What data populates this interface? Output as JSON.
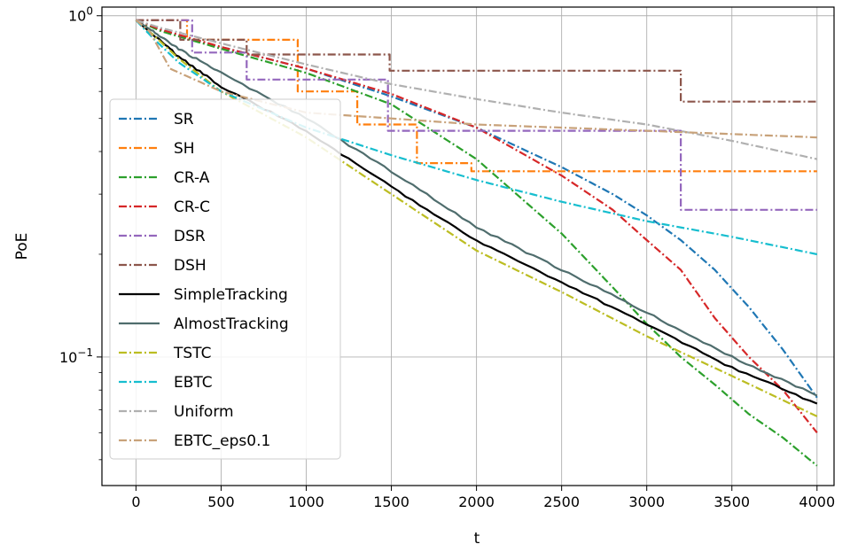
{
  "chart_data": {
    "type": "line",
    "title": "",
    "xlabel": "t",
    "ylabel": "PoE",
    "xlim": [
      -200,
      4100
    ],
    "ylim": [
      0.042,
      1.06
    ],
    "yscale": "log",
    "grid": true,
    "legend_position": "center-left",
    "x_ticks": [
      0,
      500,
      1000,
      1500,
      2000,
      2500,
      3000,
      3500,
      4000
    ],
    "x_tick_labels": [
      "0",
      "500",
      "1000",
      "1500",
      "2000",
      "2500",
      "3000",
      "3500",
      "4000"
    ],
    "y_ticks": [
      1.0,
      0.1
    ],
    "y_tick_labels": [
      {
        "base": "10",
        "exp": "0"
      },
      {
        "base": "10",
        "exp": "−1"
      }
    ],
    "series": [
      {
        "name": "SR",
        "color": "#1f77b4",
        "dash": "dashdot",
        "x": [
          0,
          150,
          300,
          500,
          1000,
          1500,
          2000,
          2500,
          2800,
          3000,
          3200,
          3400,
          3600,
          3800,
          4000
        ],
        "y": [
          0.97,
          0.91,
          0.86,
          0.81,
          0.7,
          0.58,
          0.47,
          0.36,
          0.3,
          0.26,
          0.22,
          0.18,
          0.14,
          0.105,
          0.076
        ]
      },
      {
        "name": "SH",
        "color": "#ff7f0e",
        "dash": "dashdot",
        "step": true,
        "x": [
          0,
          300,
          300,
          950,
          950,
          1300,
          1300,
          1650,
          1650,
          1970,
          1970,
          4000
        ],
        "y": [
          0.97,
          0.97,
          0.85,
          0.85,
          0.6,
          0.6,
          0.48,
          0.48,
          0.37,
          0.37,
          0.35,
          0.35
        ]
      },
      {
        "name": "CR-A",
        "color": "#2ca02c",
        "dash": "dashdot",
        "x": [
          0,
          150,
          500,
          1000,
          1500,
          2000,
          2500,
          2800,
          3000,
          3200,
          3400,
          3600,
          3800,
          4000
        ],
        "y": [
          0.97,
          0.9,
          0.8,
          0.68,
          0.55,
          0.38,
          0.23,
          0.16,
          0.125,
          0.1,
          0.083,
          0.068,
          0.058,
          0.048
        ]
      },
      {
        "name": "CR-C",
        "color": "#d62728",
        "dash": "dashdot",
        "x": [
          0,
          150,
          500,
          1000,
          1500,
          2000,
          2500,
          2800,
          3000,
          3200,
          3400,
          3600,
          3800,
          4000
        ],
        "y": [
          0.97,
          0.91,
          0.81,
          0.7,
          0.59,
          0.47,
          0.34,
          0.27,
          0.22,
          0.18,
          0.13,
          0.1,
          0.08,
          0.06
        ]
      },
      {
        "name": "DSR",
        "color": "#9467bd",
        "dash": "dashdot",
        "step": true,
        "x": [
          0,
          330,
          330,
          650,
          650,
          1480,
          1480,
          3200,
          3200,
          4000
        ],
        "y": [
          0.97,
          0.97,
          0.78,
          0.78,
          0.65,
          0.65,
          0.46,
          0.46,
          0.27,
          0.27
        ]
      },
      {
        "name": "DSH",
        "color": "#8c564b",
        "dash": "dashdot",
        "step": true,
        "x": [
          0,
          260,
          260,
          650,
          650,
          1490,
          1490,
          3200,
          3200,
          4000
        ],
        "y": [
          0.97,
          0.97,
          0.85,
          0.85,
          0.77,
          0.77,
          0.69,
          0.69,
          0.56,
          0.56
        ]
      },
      {
        "name": "SimpleTracking",
        "color": "#000000",
        "dash": "solid",
        "x": [
          0,
          100,
          250,
          500,
          1000,
          1500,
          2000,
          2500,
          3000,
          3500,
          4000
        ],
        "y": [
          0.97,
          0.88,
          0.76,
          0.62,
          0.46,
          0.315,
          0.22,
          0.165,
          0.125,
          0.093,
          0.073
        ]
      },
      {
        "name": "AlmostTracking",
        "color": "#4f6d6d",
        "dash": "solid",
        "x": [
          0,
          100,
          250,
          500,
          1000,
          1500,
          2000,
          2500,
          3000,
          3500,
          4000
        ],
        "y": [
          0.97,
          0.9,
          0.8,
          0.68,
          0.5,
          0.35,
          0.24,
          0.18,
          0.135,
          0.1,
          0.077
        ]
      },
      {
        "name": "TSTC",
        "color": "#bcbd22",
        "dash": "dashdot",
        "x": [
          0,
          100,
          250,
          500,
          1000,
          1500,
          2000,
          2500,
          3000,
          3500,
          4000
        ],
        "y": [
          0.97,
          0.88,
          0.75,
          0.6,
          0.44,
          0.3,
          0.205,
          0.155,
          0.115,
          0.088,
          0.067
        ]
      },
      {
        "name": "EBTC",
        "color": "#17becf",
        "dash": "dashdot",
        "x": [
          0,
          100,
          250,
          500,
          1000,
          1500,
          2000,
          2500,
          3000,
          3500,
          4000
        ],
        "y": [
          0.97,
          0.86,
          0.73,
          0.6,
          0.47,
          0.39,
          0.33,
          0.285,
          0.25,
          0.225,
          0.2
        ]
      },
      {
        "name": "Uniform",
        "color": "#b0b0b0",
        "dash": "dashdot",
        "x": [
          0,
          150,
          500,
          1000,
          1500,
          2000,
          2500,
          3000,
          3500,
          4000
        ],
        "y": [
          0.97,
          0.92,
          0.83,
          0.72,
          0.63,
          0.57,
          0.52,
          0.48,
          0.43,
          0.38
        ]
      },
      {
        "name": "EBTC_eps0.1",
        "color": "#c8a27a",
        "dash": "dashdot",
        "x": [
          0,
          80,
          200,
          500,
          1000,
          1500,
          2000,
          2500,
          3000,
          3500,
          4000
        ],
        "y": [
          0.97,
          0.9,
          0.7,
          0.6,
          0.52,
          0.5,
          0.48,
          0.47,
          0.46,
          0.45,
          0.44
        ]
      }
    ]
  }
}
